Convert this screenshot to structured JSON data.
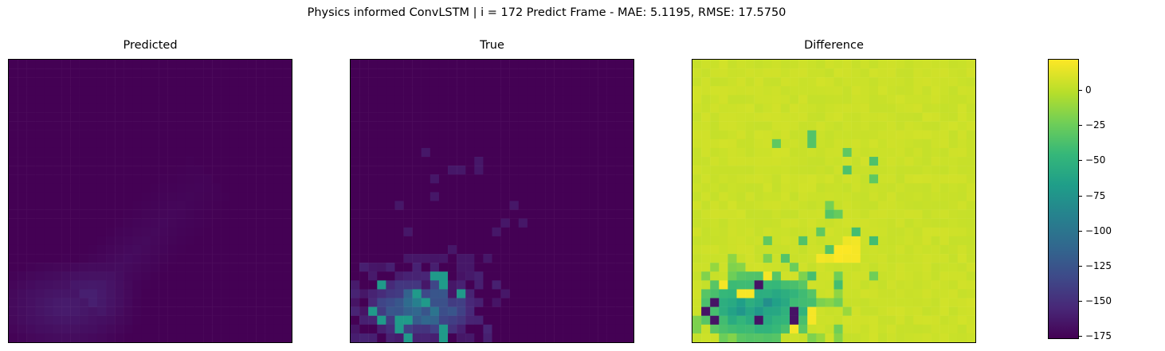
{
  "figure": {
    "suptitle": "Physics informed ConvLSTM | i = 172 Predict Frame - MAE: 5.1195, RMSE: 17.5750"
  },
  "chart_data": [
    {
      "type": "heatmap",
      "title": "Predicted",
      "colormap": "viridis",
      "axes_ticks": false,
      "grid_resolution": [
        32,
        32
      ],
      "value_range": [
        -175,
        20
      ],
      "regions": [
        {
          "area": "background",
          "value": -175
        },
        {
          "area": "lower-left blob",
          "value": -160
        },
        {
          "area": "diagonal plume toward center-right",
          "value": -165
        }
      ]
    },
    {
      "type": "heatmap",
      "title": "True",
      "colormap": "viridis",
      "axes_ticks": false,
      "grid_resolution": [
        32,
        32
      ],
      "value_range": [
        -175,
        20
      ],
      "regions": [
        {
          "area": "background",
          "value": -175
        },
        {
          "area": "scattered pixels center and lower-left",
          "value": -160
        },
        {
          "area": "lower-left cluster",
          "value": -110
        },
        {
          "area": "lower-left core",
          "value": -75
        }
      ]
    },
    {
      "type": "heatmap",
      "title": "Difference",
      "colormap": "viridis",
      "axes_ticks": false,
      "grid_resolution": [
        32,
        32
      ],
      "value_range": [
        -175,
        20
      ],
      "regions": [
        {
          "area": "background",
          "value": 5
        },
        {
          "area": "center-right streak",
          "value": 18
        },
        {
          "area": "lower-left cluster",
          "value": -50
        },
        {
          "area": "lower-left extremes",
          "value": -165
        }
      ]
    }
  ],
  "colorbar": {
    "ticks": [
      "0",
      "−25",
      "−50",
      "−75",
      "−100",
      "−125",
      "−150",
      "−175"
    ],
    "tick_values": [
      0,
      -25,
      -50,
      -75,
      -100,
      -125,
      -150,
      -175
    ],
    "range": [
      -177,
      22
    ]
  }
}
